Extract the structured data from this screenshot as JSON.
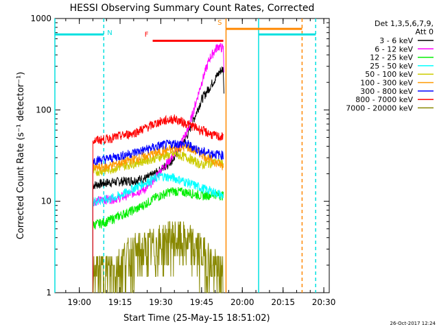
{
  "chart_data": {
    "type": "line",
    "title": "HESSI Observing Summary Count Rates, Corrected",
    "xlabel": "Start Time (25-May-15 18:51:02)",
    "ylabel": "Corrected Count Rate (s⁻¹ detector⁻¹)",
    "yscale": "log",
    "ylim": [
      1,
      1000
    ],
    "xlim": [
      "18:51",
      "20:32"
    ],
    "x_ticks": [
      "19:00",
      "19:15",
      "19:30",
      "19:45",
      "20:00",
      "20:15",
      "20:30"
    ],
    "y_ticks": [
      "1",
      "10",
      "100",
      "1000"
    ],
    "legend_title": "Det 1,3,5,6,7,9,",
    "legend_subtitle": "Att 0",
    "legend_placement": "right",
    "footer_date": "26-Oct-2017 12:24",
    "series": [
      {
        "name": "3 - 6 keV",
        "color": "#000000",
        "points": [
          [
            "19:05",
            15
          ],
          [
            "19:10",
            16
          ],
          [
            "19:20",
            17
          ],
          [
            "19:25",
            18
          ],
          [
            "19:30",
            22
          ],
          [
            "19:35",
            30
          ],
          [
            "19:40",
            55
          ],
          [
            "19:45",
            130
          ],
          [
            "19:50",
            220
          ],
          [
            "19:52",
            270
          ],
          [
            "19:53",
            280
          ],
          [
            "19:53.3",
            120
          ]
        ]
      },
      {
        "name": "6 - 12 keV",
        "color": "#ff00ff",
        "points": [
          [
            "19:05",
            10
          ],
          [
            "19:15",
            11
          ],
          [
            "19:25",
            14
          ],
          [
            "19:30",
            22
          ],
          [
            "19:35",
            33
          ],
          [
            "19:40",
            60
          ],
          [
            "19:45",
            200
          ],
          [
            "19:48",
            370
          ],
          [
            "19:51",
            500
          ],
          [
            "19:53",
            470
          ],
          [
            "19:53.3",
            240
          ]
        ]
      },
      {
        "name": "12 - 25 keV",
        "color": "#00ee00",
        "points": [
          [
            "19:05",
            5.5
          ],
          [
            "19:10",
            6
          ],
          [
            "19:15",
            7
          ],
          [
            "19:22",
            8.5
          ],
          [
            "19:28",
            11
          ],
          [
            "19:34",
            13
          ],
          [
            "19:40",
            12.5
          ],
          [
            "19:45",
            11.5
          ],
          [
            "19:50",
            12
          ],
          [
            "19:53",
            11.5
          ]
        ]
      },
      {
        "name": "25 - 50 keV",
        "color": "#00ffff",
        "points": [
          [
            "19:05",
            10
          ],
          [
            "19:10",
            10.5
          ],
          [
            "19:15",
            11.5
          ],
          [
            "19:20",
            14
          ],
          [
            "19:30",
            19
          ],
          [
            "19:35",
            18
          ],
          [
            "19:40",
            16
          ],
          [
            "19:45",
            14
          ],
          [
            "19:50",
            12.5
          ],
          [
            "19:53",
            11.5
          ]
        ]
      },
      {
        "name": "50 - 100 keV",
        "color": "#cccc00",
        "points": [
          [
            "19:05",
            21
          ],
          [
            "19:10",
            22
          ],
          [
            "19:20",
            26
          ],
          [
            "19:30",
            31
          ],
          [
            "19:35",
            33
          ],
          [
            "19:40",
            30
          ],
          [
            "19:45",
            25
          ],
          [
            "19:50",
            27
          ],
          [
            "19:53",
            26
          ]
        ]
      },
      {
        "name": "100 - 300 keV",
        "color": "#ff9900",
        "points": [
          [
            "19:05",
            23
          ],
          [
            "19:10",
            24
          ],
          [
            "19:20",
            29
          ],
          [
            "19:30",
            35
          ],
          [
            "19:35",
            38
          ],
          [
            "19:40",
            39
          ],
          [
            "19:45",
            33
          ],
          [
            "19:50",
            27
          ],
          [
            "19:53",
            24
          ]
        ]
      },
      {
        "name": "300 - 800 keV",
        "color": "#0000ff",
        "points": [
          [
            "19:05",
            28
          ],
          [
            "19:10",
            29
          ],
          [
            "19:20",
            34
          ],
          [
            "19:30",
            41
          ],
          [
            "19:35",
            43
          ],
          [
            "19:40",
            42
          ],
          [
            "19:45",
            35
          ],
          [
            "19:50",
            33
          ],
          [
            "19:53",
            32
          ]
        ]
      },
      {
        "name": "800 - 7000 keV",
        "color": "#ff0000",
        "points": [
          [
            "19:05",
            46
          ],
          [
            "19:10",
            48
          ],
          [
            "19:20",
            56
          ],
          [
            "19:30",
            75
          ],
          [
            "19:35",
            80
          ],
          [
            "19:40",
            70
          ],
          [
            "19:45",
            60
          ],
          [
            "19:50",
            52
          ],
          [
            "19:53",
            50
          ]
        ]
      },
      {
        "name": "7000 - 20000 keV",
        "color": "#888800",
        "points": [
          [
            "19:05",
            1.6
          ],
          [
            "19:12",
            1.8
          ],
          [
            "19:18",
            2.5
          ],
          [
            "19:25",
            3
          ],
          [
            "19:30",
            3.5
          ],
          [
            "19:35",
            4
          ],
          [
            "19:40",
            3.5
          ],
          [
            "19:45",
            2.8
          ],
          [
            "19:50",
            1.8
          ],
          [
            "19:53",
            1.6
          ]
        ]
      }
    ],
    "annotations": [
      {
        "label": "N",
        "color": "#00e0e0",
        "line_x": "19:09",
        "style": "dashed"
      },
      {
        "label": "F",
        "color": "#ff0000",
        "bar_from": "19:27",
        "bar_to": "19:53",
        "level": 570
      },
      {
        "label": "S",
        "color": "#ff8800",
        "bar_from": "19:54",
        "bar_to": "20:22",
        "level": 770
      },
      {
        "label": "",
        "color": "#00e0e0",
        "bar_from": "18:51",
        "bar_to": "19:09",
        "level": 670
      },
      {
        "label": "",
        "color": "#00e0e0",
        "bar_from": "20:06",
        "bar_to": "20:27",
        "level": 670
      }
    ],
    "vertical_lines": [
      {
        "x": "19:54",
        "color": "#ff8800",
        "style": "solid"
      },
      {
        "x": "20:06",
        "color": "#00e0e0",
        "style": "solid"
      },
      {
        "x": "20:22",
        "color": "#ff8800",
        "style": "dashed"
      },
      {
        "x": "20:27",
        "color": "#00e0e0",
        "style": "dashed"
      },
      {
        "x": "18:51",
        "color": "#00e0e0",
        "style": "solid"
      }
    ]
  }
}
